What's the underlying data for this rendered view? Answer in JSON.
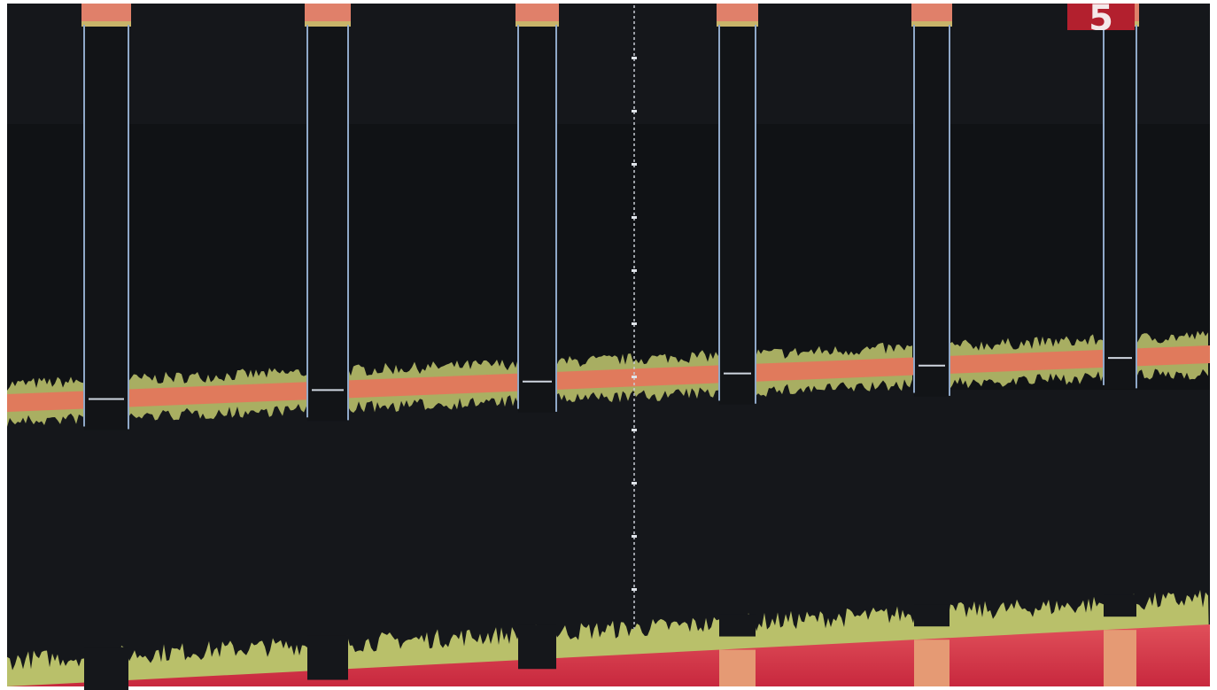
{
  "badge": "5"
}
